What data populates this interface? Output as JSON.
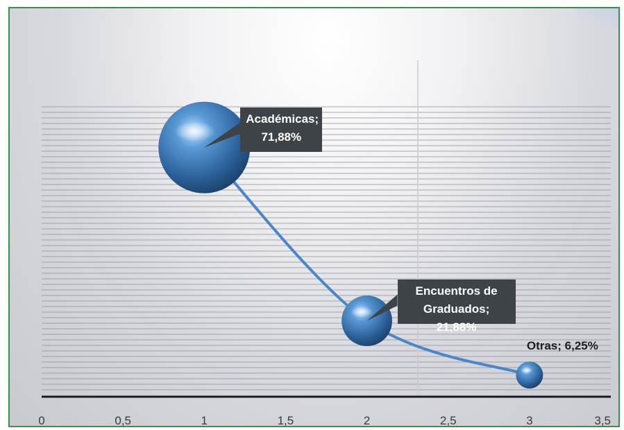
{
  "chart_data": {
    "type": "scatter",
    "title": "",
    "xlabel": "",
    "ylabel": "",
    "xlim": [
      0,
      3.5
    ],
    "ylim": [
      0,
      80
    ],
    "x_ticks": [
      "0",
      "0,5",
      "1",
      "1,5",
      "2",
      "2,5",
      "3",
      "3,5"
    ],
    "x_tick_values": [
      0,
      0.5,
      1,
      1.5,
      2,
      2.5,
      3,
      3.5
    ],
    "grid": "horizontal",
    "trendline": "smoothed",
    "points": [
      {
        "x": 1,
        "y": 71.88,
        "label_line1": "Académicas;",
        "label_line2": "71,88%",
        "label_style": "box"
      },
      {
        "x": 2,
        "y": 21.88,
        "label_line1": "Encuentros de",
        "label_line2": "Graduados; 21,88%",
        "label_style": "box"
      },
      {
        "x": 3,
        "y": 6.25,
        "label_line1": "Otras; 6,25%",
        "label_line2": "",
        "label_style": "plain"
      }
    ],
    "colors": {
      "bubble": "#3c7fc0",
      "line": "#4a86c8",
      "callout": "#3d4347",
      "frame": "#3b8f4a"
    }
  }
}
